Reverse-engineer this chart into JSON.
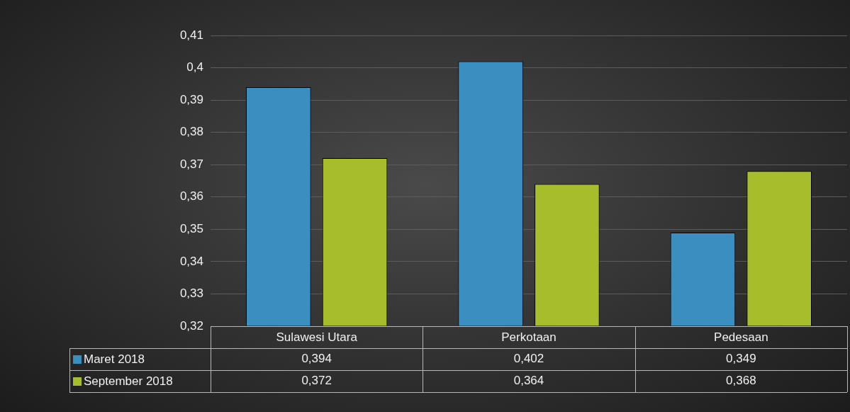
{
  "chart_data": {
    "type": "bar",
    "categories": [
      "Sulawesi Utara",
      "Perkotaan",
      "Pedesaan"
    ],
    "series": [
      {
        "name": "Maret 2018",
        "color": "#3a8fc0",
        "values": [
          0.394,
          0.402,
          0.349
        ],
        "value_labels": [
          "0,394",
          "0,402",
          "0,349"
        ]
      },
      {
        "name": "September 2018",
        "color": "#a8bd2c",
        "values": [
          0.372,
          0.364,
          0.368
        ],
        "value_labels": [
          "0,372",
          "0,364",
          "0,368"
        ]
      }
    ],
    "ylim": [
      0.32,
      0.41
    ],
    "yticks": [
      {
        "value": 0.32,
        "label": "0,32"
      },
      {
        "value": 0.33,
        "label": "0,33"
      },
      {
        "value": 0.34,
        "label": "0,34"
      },
      {
        "value": 0.35,
        "label": "0,35"
      },
      {
        "value": 0.36,
        "label": "0,36"
      },
      {
        "value": 0.37,
        "label": "0,37"
      },
      {
        "value": 0.38,
        "label": "0,38"
      },
      {
        "value": 0.39,
        "label": "0,39"
      },
      {
        "value": 0.4,
        "label": "0,4"
      },
      {
        "value": 0.41,
        "label": "0,41"
      }
    ],
    "grid": "y",
    "legend": "bottom left"
  }
}
